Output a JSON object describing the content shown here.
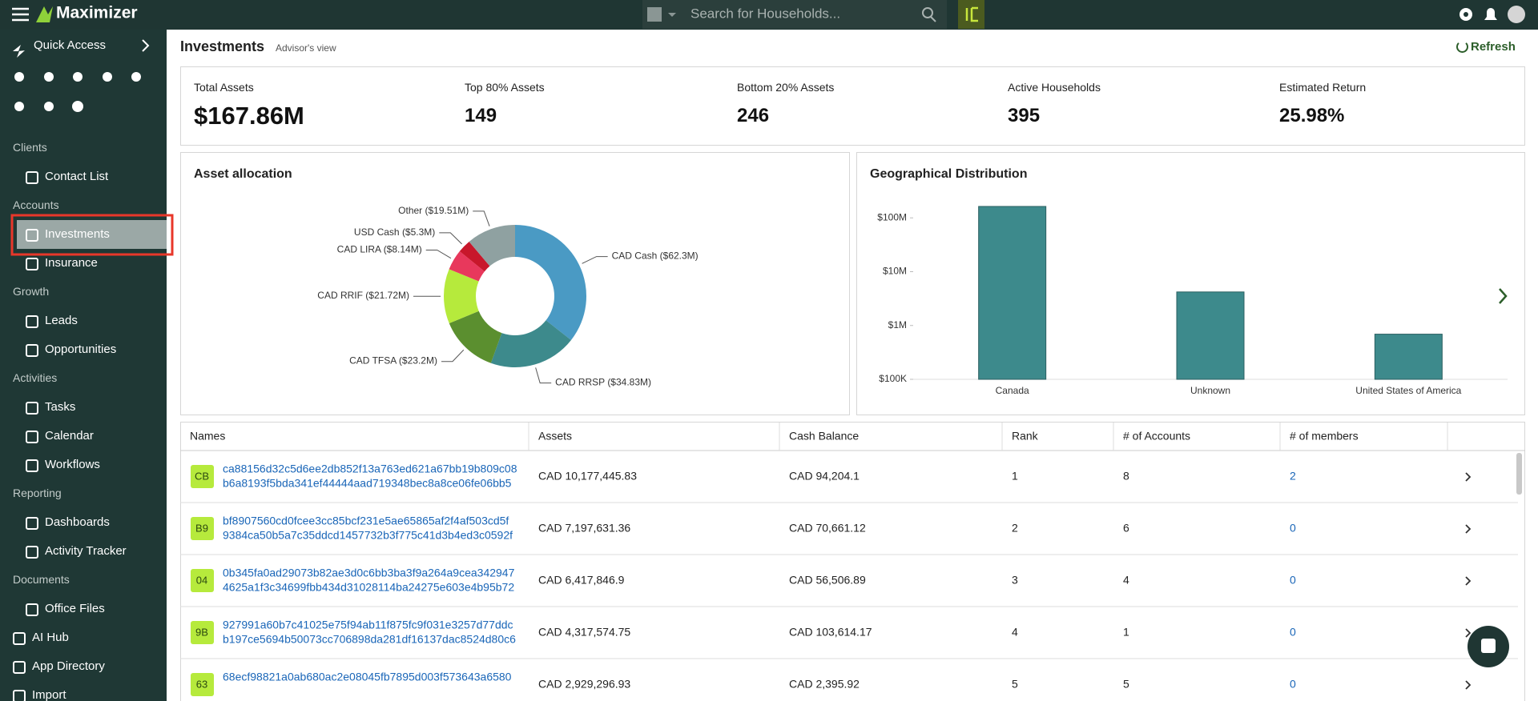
{
  "header": {
    "brand": "Maximizer",
    "search_placeholder": "Search for Households..."
  },
  "sidebar": {
    "quick_access": "Quick Access",
    "sections": [
      {
        "title": "Clients",
        "items": [
          "Contact List"
        ]
      },
      {
        "title": "Accounts",
        "items": [
          "Investments",
          "Insurance"
        ]
      },
      {
        "title": "Growth",
        "items": [
          "Leads",
          "Opportunities"
        ]
      },
      {
        "title": "Activities",
        "items": [
          "Tasks",
          "Calendar",
          "Workflows"
        ]
      },
      {
        "title": "Reporting",
        "items": [
          "Dashboards",
          "Activity Tracker"
        ]
      },
      {
        "title": "Documents",
        "items": [
          "Office Files"
        ]
      }
    ],
    "bottom_items": [
      "AI Hub",
      "App Directory",
      "Import"
    ]
  },
  "page": {
    "title": "Investments",
    "subtitle": "Advisor's view",
    "refresh": "Refresh"
  },
  "kpis": [
    {
      "label": "Total Assets",
      "value": "$167.86M"
    },
    {
      "label": "Top 80% Assets",
      "value": "149"
    },
    {
      "label": "Bottom 20% Assets",
      "value": "246"
    },
    {
      "label": "Active Households",
      "value": "395"
    },
    {
      "label": "Estimated Return",
      "value": "25.98%"
    }
  ],
  "asset_allocation": {
    "type": "pie",
    "title": "Asset allocation",
    "categories": [
      "CAD Cash",
      "CAD RRSP",
      "CAD TFSA",
      "CAD RRIF",
      "CAD LIRA",
      "USD Cash",
      "Other"
    ],
    "values": [
      62.3,
      34.83,
      23.2,
      21.72,
      8.14,
      5.3,
      19.51
    ],
    "value_labels": [
      "($62.3M)",
      "($34.83M)",
      "($23.2M)",
      "($21.72M)",
      "($8.14M)",
      "($5.3M)",
      "($19.51M)"
    ],
    "colors": [
      "#4a9ac4",
      "#3d8a8c",
      "#5b8f2f",
      "#b6ea3c",
      "#e8385c",
      "#c8172b",
      "#8fa1a1"
    ]
  },
  "geo_distribution": {
    "type": "bar",
    "title": "Geographical Distribution",
    "categories": [
      "Canada",
      "Unknown",
      "United States of America"
    ],
    "values": [
      163000000,
      4200000,
      690000
    ],
    "color": "#3d8a8c",
    "log_scale": true,
    "ylim": [
      100000,
      200000000
    ],
    "yticks": [
      {
        "value": 100000,
        "label": "$100K"
      },
      {
        "value": 1000000,
        "label": "$1M"
      },
      {
        "value": 10000000,
        "label": "$10M"
      },
      {
        "value": 100000000,
        "label": "$100M"
      }
    ]
  },
  "table": {
    "columns": [
      "Names",
      "Assets",
      "Cash Balance",
      "Rank",
      "# of Accounts",
      "# of members"
    ],
    "rows": [
      {
        "badge": "CB",
        "name": [
          "ca88156d32c5d6ee2db852f13a763ed621a67bb19b809c08",
          "b6a8193f5bda341ef44444aad719348bec8a8ce06fe06bb5"
        ],
        "cells": [
          "CAD 10,177,445.83",
          "CAD 94,204.1",
          "1",
          "8",
          "2"
        ]
      },
      {
        "badge": "B9",
        "name": [
          "bf8907560cd0fcee3cc85bcf231e5ae65865af2f4af503cd5f",
          "9384ca50b5a7c35ddcd1457732b3f775c41d3b4ed3c0592f"
        ],
        "cells": [
          "CAD 7,197,631.36",
          "CAD 70,661.12",
          "2",
          "6",
          "0"
        ]
      },
      {
        "badge": "04",
        "name": [
          "0b345fa0ad29073b82ae3d0c6bb3ba3f9a264a9cea342947",
          "4625a1f3c34699fbb434d31028114ba24275e603e4b95b72"
        ],
        "cells": [
          "CAD 6,417,846.9",
          "CAD 56,506.89",
          "3",
          "4",
          "0"
        ]
      },
      {
        "badge": "9B",
        "name": [
          "927991a60b7c41025e75f94ab11f875fc9f031e3257d77ddc",
          "b197ce5694b50073cc706898da281df16137dac8524d80c6"
        ],
        "cells": [
          "CAD 4,317,574.75",
          "CAD 103,614.17",
          "4",
          "1",
          "0"
        ]
      },
      {
        "badge": "63",
        "name": [
          "68ecf98821a0ab680ac2e08045fb7895d003f573643a6580"
        ],
        "cells": [
          "CAD 2,929,296.93",
          "CAD 2,395.92",
          "5",
          "5",
          "0"
        ]
      }
    ]
  }
}
